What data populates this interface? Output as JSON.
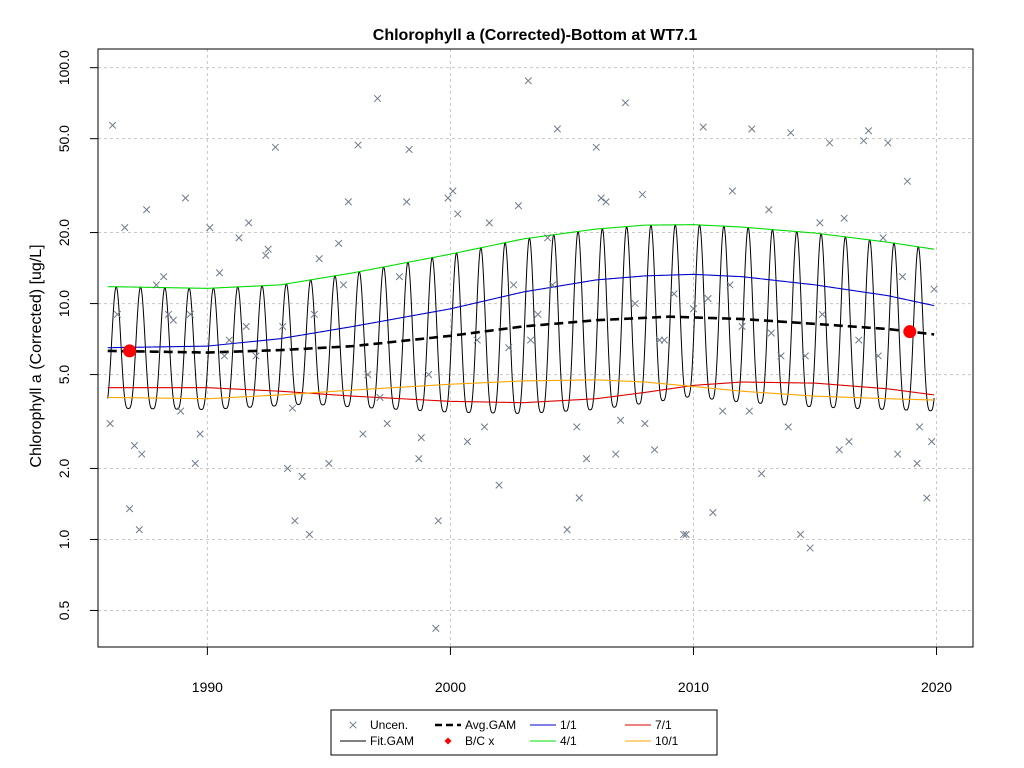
{
  "chart_data": {
    "type": "line",
    "title": "Chlorophyll a (Corrected)-Bottom at WT7.1",
    "xlabel": "",
    "ylabel": "Chlorophyll a (Corrected) [ug/L]",
    "xlim": [
      1985.5,
      2021.5
    ],
    "ylim": [
      0.35,
      120
    ],
    "yscale": "log",
    "grid": true,
    "legend_position": "bottom",
    "x_ticks": [
      1990,
      2000,
      2010,
      2020
    ],
    "y_ticks": [
      0.5,
      1.0,
      2.0,
      5.0,
      10.0,
      20.0,
      50.0,
      100.0
    ],
    "x_tick_labels": [
      "1990",
      "2000",
      "2010",
      "2020"
    ],
    "y_tick_labels": [
      "0.5",
      "1.0",
      "2.0",
      "5.0",
      "10.0",
      "20.0",
      "50.0",
      "100.0"
    ],
    "legend": [
      {
        "label": "Uncen.",
        "kind": "cross",
        "color": "#6e7b8b"
      },
      {
        "label": "Fit.GAM",
        "kind": "line",
        "color": "#000000"
      },
      {
        "label": "Avg.GAM",
        "kind": "dashed",
        "color": "#000000"
      },
      {
        "label": "B/C x",
        "kind": "diamond",
        "color": "#ff0000"
      },
      {
        "label": "1/1",
        "kind": "line",
        "color": "#0000cd"
      },
      {
        "label": "4/1",
        "kind": "line",
        "color": "#00dd00"
      },
      {
        "label": "7/1",
        "kind": "line",
        "color": "#dd0000"
      },
      {
        "label": "10/1",
        "kind": "line",
        "color": "#ffa500"
      }
    ],
    "colors": {
      "obs": "#6e7b8b",
      "fit": "#000000",
      "avg": "#000000",
      "bc": "#ff0000",
      "jan": "#0000cd",
      "apr": "#00dd00",
      "jul": "#dd0000",
      "oct": "#ffa500"
    },
    "series": [
      {
        "name": "Avg.GAM",
        "x": [
          1985.9,
          1990,
          1993,
          1996,
          2000,
          2003,
          2006,
          2009,
          2012,
          2015,
          2018,
          2019.9
        ],
        "y": [
          6.3,
          6.2,
          6.35,
          6.6,
          7.3,
          8.0,
          8.5,
          8.8,
          8.6,
          8.2,
          7.8,
          7.4
        ]
      },
      {
        "name": "1/1",
        "x": [
          1985.9,
          1990,
          1993,
          1996,
          2000,
          2003,
          2006,
          2008,
          2010,
          2012,
          2015,
          2018,
          2019.9
        ],
        "y": [
          6.5,
          6.6,
          7.1,
          8.0,
          9.5,
          11.2,
          12.6,
          13.1,
          13.3,
          13.0,
          12.0,
          10.8,
          9.8
        ]
      },
      {
        "name": "4/1",
        "x": [
          1985.9,
          1990,
          1993,
          1996,
          2000,
          2003,
          2006,
          2008,
          2010,
          2012,
          2015,
          2018,
          2019.9
        ],
        "y": [
          11.8,
          11.6,
          12.0,
          13.5,
          16.2,
          18.8,
          20.7,
          21.5,
          21.6,
          21.1,
          19.9,
          18.2,
          17.0
        ]
      },
      {
        "name": "7/1",
        "x": [
          1985.9,
          1990,
          1993,
          1996,
          2000,
          2003,
          2006,
          2008,
          2010,
          2012,
          2015,
          2018,
          2019.9
        ],
        "y": [
          4.4,
          4.4,
          4.25,
          4.05,
          3.85,
          3.8,
          3.95,
          4.2,
          4.5,
          4.65,
          4.6,
          4.35,
          4.1
        ]
      },
      {
        "name": "10/1",
        "x": [
          1985.9,
          1990,
          1993,
          1996,
          2000,
          2003,
          2006,
          2008,
          2010,
          2012,
          2015,
          2018,
          2019.9
        ],
        "y": [
          4.0,
          3.95,
          4.1,
          4.3,
          4.55,
          4.7,
          4.75,
          4.65,
          4.45,
          4.25,
          4.05,
          3.95,
          3.9
        ]
      },
      {
        "name": "B/C x",
        "x": [
          1986.8,
          2018.9
        ],
        "y": [
          6.3,
          7.6
        ]
      },
      {
        "name": "Uncen.",
        "x": [
          1986.1,
          1986.3,
          1986.6,
          1986.8,
          1987.0,
          1987.2,
          1987.5,
          1987.9,
          1988.2,
          1988.6,
          1988.9,
          1989.1,
          1989.3,
          1989.7,
          1990.1,
          1990.5,
          1990.9,
          1991.3,
          1991.7,
          1992.0,
          1992.4,
          1992.8,
          1993.1,
          1993.5,
          1993.9,
          1994.2,
          1994.6,
          1995.0,
          1995.4,
          1995.8,
          1996.2,
          1996.6,
          1997.0,
          1997.4,
          1997.9,
          1998.3,
          1998.7,
          1999.1,
          1999.5,
          1999.9,
          2000.3,
          2000.7,
          2001.1,
          2001.6,
          2002.0,
          2002.4,
          2002.8,
          2003.2,
          2003.6,
          2004.0,
          2004.4,
          2004.8,
          2005.2,
          2005.6,
          2006.0,
          2006.4,
          2006.8,
          2007.2,
          2007.6,
          2008.0,
          2008.4,
          2008.8,
          2009.2,
          2009.6,
          2010.0,
          2010.4,
          2010.8,
          2011.2,
          2011.6,
          2012.0,
          2012.4,
          2012.8,
          2013.2,
          2013.6,
          2014.0,
          2014.4,
          2014.8,
          2015.2,
          2015.6,
          2016.0,
          2016.4,
          2016.8,
          2017.2,
          2017.6,
          2018.0,
          2018.4,
          2018.8,
          2019.2,
          2019.6,
          2019.9,
          1986.0,
          1987.3,
          1988.4,
          1989.5,
          1990.7,
          1991.6,
          1992.5,
          1993.3,
          1993.6,
          1994.4,
          1995.6,
          1996.4,
          1997.1,
          1998.2,
          1998.8,
          1999.4,
          2000.1,
          2001.4,
          2002.6,
          2003.3,
          2004.2,
          2005.3,
          2006.2,
          2007.0,
          2007.9,
          2008.6,
          2009.7,
          2010.6,
          2011.5,
          2012.3,
          2013.1,
          2013.9,
          2014.6,
          2015.3,
          2016.2,
          2017.0,
          2017.8,
          2018.6,
          2019.3,
          2019.8
        ],
        "y": [
          57.0,
          9.0,
          21.0,
          1.35,
          2.5,
          1.1,
          25.0,
          12.0,
          13.0,
          8.5,
          3.5,
          28.0,
          9.0,
          2.8,
          21.0,
          13.5,
          7.0,
          19.0,
          22.0,
          6.0,
          16.0,
          46.0,
          8.0,
          3.6,
          1.85,
          1.05,
          15.5,
          2.1,
          18.0,
          27.0,
          47.0,
          5.0,
          74.0,
          3.1,
          13.0,
          45.0,
          2.2,
          5.0,
          1.2,
          28.0,
          24.0,
          2.6,
          7.0,
          22.0,
          1.7,
          6.5,
          26.0,
          88.0,
          9.0,
          19.0,
          55.0,
          1.1,
          3.0,
          2.2,
          46.0,
          27.0,
          2.3,
          71.0,
          10.0,
          3.1,
          2.4,
          7.0,
          11.0,
          1.05,
          9.5,
          56.0,
          1.3,
          3.5,
          30.0,
          8.0,
          55.0,
          1.9,
          7.5,
          6.0,
          53.0,
          1.05,
          0.92,
          22.0,
          48.0,
          2.4,
          2.6,
          7.0,
          54.0,
          6.0,
          48.0,
          2.3,
          33.0,
          2.1,
          1.5,
          11.5,
          3.1,
          2.3,
          9.0,
          2.1,
          6.0,
          8.0,
          17.0,
          2.0,
          1.2,
          9.0,
          12.0,
          2.8,
          4.0,
          27.0,
          2.7,
          0.42,
          30.0,
          3.0,
          12.0,
          7.0,
          12.0,
          1.5,
          28.0,
          3.2,
          29.0,
          7.0,
          1.05,
          10.5,
          12.0,
          3.5,
          25.0,
          3.0,
          6.0,
          9.0,
          23.0,
          49.0,
          19.0,
          13.0,
          3.0,
          2.6
        ]
      }
    ]
  }
}
